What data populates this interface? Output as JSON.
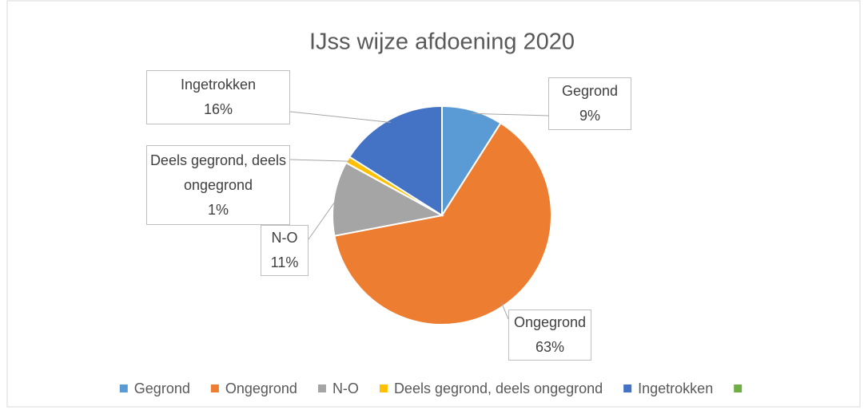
{
  "chart_data": {
    "type": "pie",
    "title": "IJss wijze afdoening 2020",
    "categories": [
      "Gegrond",
      "Ongegrond",
      "N-O",
      "Deels gegrond, deels ongegrond",
      "Ingetrokken",
      null
    ],
    "values": [
      9,
      63,
      11,
      1,
      16,
      0
    ],
    "value_labels": [
      "9%",
      "63%",
      "11%",
      "1%",
      "16%",
      null
    ],
    "colors": [
      "#5b9bd5",
      "#ed7d31",
      "#a5a5a5",
      "#ffc000",
      "#4472c4",
      "#70ad47"
    ],
    "legend": "bottom"
  }
}
